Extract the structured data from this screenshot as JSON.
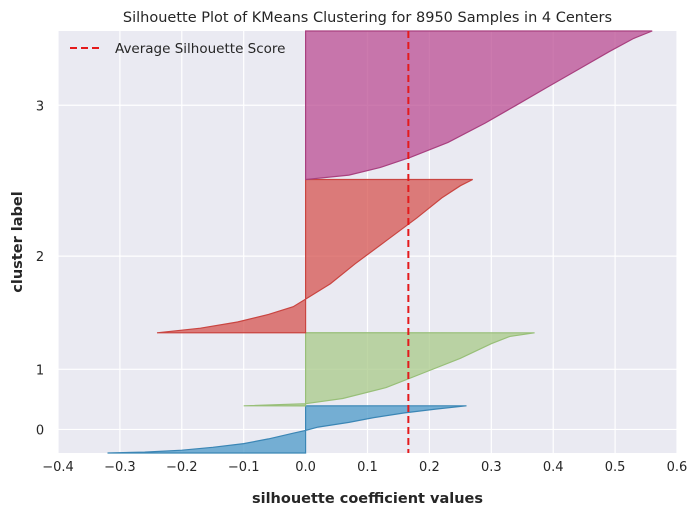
{
  "chart_data": {
    "type": "area",
    "title": "Silhouette Plot of KMeans Clustering for 8950 Samples in 4 Centers",
    "xlabel": "silhouette coefficient values",
    "ylabel": "cluster label",
    "xlim": [
      -0.4,
      0.6
    ],
    "xticks": [
      -0.4,
      -0.3,
      -0.2,
      -0.1,
      0.0,
      0.1,
      0.2,
      0.3,
      0.4,
      0.5,
      0.6
    ],
    "xtick_labels": [
      "−0.4",
      "−0.3",
      "−0.2",
      "−0.1",
      "0.0",
      "0.1",
      "0.2",
      "0.3",
      "0.4",
      "0.5",
      "0.6"
    ],
    "ytick_labels": [
      "0",
      "1",
      "2",
      "3"
    ],
    "ylim": [
      0,
      8950
    ],
    "grid": true,
    "legend_position": "top-left",
    "average_line": {
      "label": "Average Silhouette Score",
      "value": 0.166,
      "color": "#e41a1c"
    },
    "clusters": [
      {
        "label": "0",
        "color": "#4c9ac8",
        "edge": "#3b86b5",
        "y_start": 0,
        "y_end": 1000,
        "min": -0.32,
        "max": 0.26,
        "profile": [
          [
            0,
            -0.32
          ],
          [
            0.02,
            -0.26
          ],
          [
            0.06,
            -0.2
          ],
          [
            0.12,
            -0.15
          ],
          [
            0.2,
            -0.1
          ],
          [
            0.3,
            -0.06
          ],
          [
            0.42,
            -0.02
          ],
          [
            0.48,
            0.0
          ],
          [
            0.55,
            0.02
          ],
          [
            0.65,
            0.07
          ],
          [
            0.75,
            0.11
          ],
          [
            0.85,
            0.16
          ],
          [
            0.93,
            0.21
          ],
          [
            1.0,
            0.26
          ]
        ]
      },
      {
        "label": "1",
        "color": "#a8ca88",
        "edge": "#98bf78",
        "y_start": 1000,
        "y_end": 2550,
        "min": -0.1,
        "max": 0.37,
        "profile": [
          [
            0,
            -0.1
          ],
          [
            0.03,
            0.0
          ],
          [
            0.1,
            0.06
          ],
          [
            0.25,
            0.13
          ],
          [
            0.45,
            0.19
          ],
          [
            0.65,
            0.25
          ],
          [
            0.85,
            0.3
          ],
          [
            0.95,
            0.33
          ],
          [
            1.0,
            0.37
          ]
        ]
      },
      {
        "label": "2",
        "color": "#d65450",
        "edge": "#c94541",
        "y_start": 2550,
        "y_end": 5800,
        "min": -0.24,
        "max": 0.27,
        "profile": [
          [
            0,
            -0.24
          ],
          [
            0.03,
            -0.17
          ],
          [
            0.07,
            -0.11
          ],
          [
            0.12,
            -0.06
          ],
          [
            0.17,
            -0.02
          ],
          [
            0.22,
            0.0
          ],
          [
            0.32,
            0.04
          ],
          [
            0.45,
            0.08
          ],
          [
            0.6,
            0.13
          ],
          [
            0.75,
            0.18
          ],
          [
            0.88,
            0.22
          ],
          [
            0.96,
            0.25
          ],
          [
            1.0,
            0.27
          ]
        ]
      },
      {
        "label": "3",
        "color": "#bb4e93",
        "edge": "#a8407f",
        "y_start": 5800,
        "y_end": 8950,
        "min": 0.0,
        "max": 0.56,
        "profile": [
          [
            0,
            0.0
          ],
          [
            0.03,
            0.07
          ],
          [
            0.08,
            0.12
          ],
          [
            0.15,
            0.17
          ],
          [
            0.25,
            0.23
          ],
          [
            0.38,
            0.29
          ],
          [
            0.5,
            0.34
          ],
          [
            0.62,
            0.39
          ],
          [
            0.74,
            0.44
          ],
          [
            0.86,
            0.49
          ],
          [
            0.95,
            0.53
          ],
          [
            1.0,
            0.56
          ]
        ]
      }
    ]
  },
  "colors": {
    "axes_bg": "#eaeaf2",
    "grid": "#ffffff",
    "text": "#262626"
  }
}
